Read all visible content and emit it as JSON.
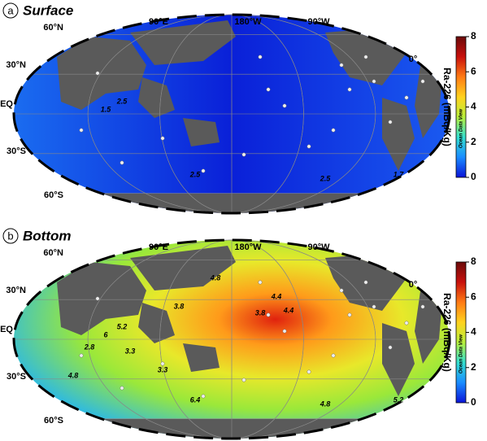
{
  "panels": [
    {
      "letter": "a",
      "title": "Surface",
      "lat_labels": [
        "60°N",
        "30°N",
        "EQ",
        "30°S",
        "60°S"
      ],
      "lon_labels": [
        "90°E",
        "180°W",
        "90°W",
        "0°"
      ],
      "contour_labels": [
        "2.5",
        "1.5",
        "2.5",
        "2.5",
        "1.7"
      ],
      "colorbar": {
        "label": "Ra-226 (mBq/Kg)",
        "credit": "Ocean Data View",
        "lim": [
          0,
          8
        ],
        "ticks": [
          0,
          2,
          4,
          6,
          8
        ],
        "colors": [
          "#0a14d8",
          "#1a8cff",
          "#35e0d0",
          "#b8f03c",
          "#ffd21e",
          "#ff7a14",
          "#c8100c",
          "#6a0a0a"
        ]
      }
    },
    {
      "letter": "b",
      "title": "Bottom",
      "lat_labels": [
        "60°N",
        "30°N",
        "EQ",
        "30°S",
        "60°S"
      ],
      "lon_labels": [
        "90°E",
        "180°W",
        "90°W",
        "0°"
      ],
      "contour_labels": [
        "5.2",
        "6",
        "6.4",
        "4.8",
        "5.2",
        "4.8",
        "4.4",
        "4.4",
        "3.8",
        "3.8",
        "3.3",
        "2.8",
        "4.8",
        "3.3"
      ],
      "colorbar": {
        "label": "Ra-226 (mBq/Kg)",
        "credit": "Ocean Data View",
        "lim": [
          0,
          8
        ],
        "ticks": [
          0,
          2,
          4,
          6,
          8
        ],
        "colors": [
          "#0a14d8",
          "#1a8cff",
          "#35e0d0",
          "#b8f03c",
          "#ffd21e",
          "#ff7a14",
          "#c8100c",
          "#6a0a0a"
        ]
      }
    }
  ]
}
